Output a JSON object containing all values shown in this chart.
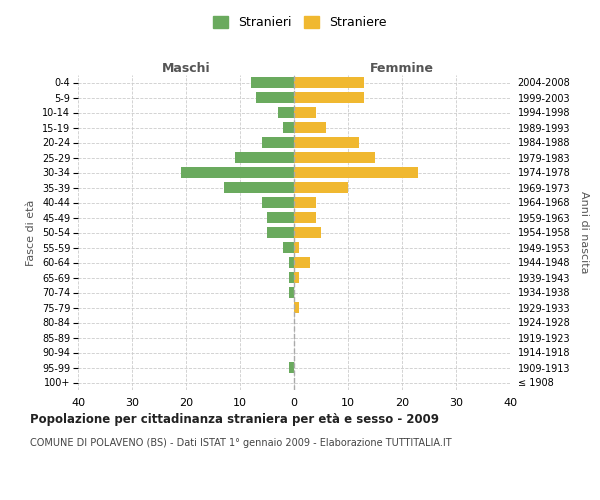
{
  "age_groups": [
    "100+",
    "95-99",
    "90-94",
    "85-89",
    "80-84",
    "75-79",
    "70-74",
    "65-69",
    "60-64",
    "55-59",
    "50-54",
    "45-49",
    "40-44",
    "35-39",
    "30-34",
    "25-29",
    "20-24",
    "15-19",
    "10-14",
    "5-9",
    "0-4"
  ],
  "birth_years": [
    "≤ 1908",
    "1909-1913",
    "1914-1918",
    "1919-1923",
    "1924-1928",
    "1929-1933",
    "1934-1938",
    "1939-1943",
    "1944-1948",
    "1949-1953",
    "1954-1958",
    "1959-1963",
    "1964-1968",
    "1969-1973",
    "1974-1978",
    "1979-1983",
    "1984-1988",
    "1989-1993",
    "1994-1998",
    "1999-2003",
    "2004-2008"
  ],
  "males": [
    0,
    1,
    0,
    0,
    0,
    0,
    1,
    1,
    1,
    2,
    5,
    5,
    6,
    13,
    21,
    11,
    6,
    2,
    3,
    7,
    8
  ],
  "females": [
    0,
    0,
    0,
    0,
    0,
    1,
    0,
    1,
    3,
    1,
    5,
    4,
    4,
    10,
    23,
    15,
    12,
    6,
    4,
    13,
    13
  ],
  "male_color": "#6aaa5e",
  "female_color": "#f0b830",
  "grid_color": "#cccccc",
  "zero_line_color": "#aaaaaa",
  "xlim": 40,
  "title": "Popolazione per cittadinanza straniera per età e sesso - 2009",
  "subtitle": "COMUNE DI POLAVENO (BS) - Dati ISTAT 1° gennaio 2009 - Elaborazione TUTTITALIA.IT",
  "xlabel_left": "Maschi",
  "xlabel_right": "Femmine",
  "ylabel_left": "Fasce di età",
  "ylabel_right": "Anni di nascita",
  "legend_male": "Stranieri",
  "legend_female": "Straniere",
  "bg_color": "#ffffff",
  "plot_bg_color": "#ffffff"
}
